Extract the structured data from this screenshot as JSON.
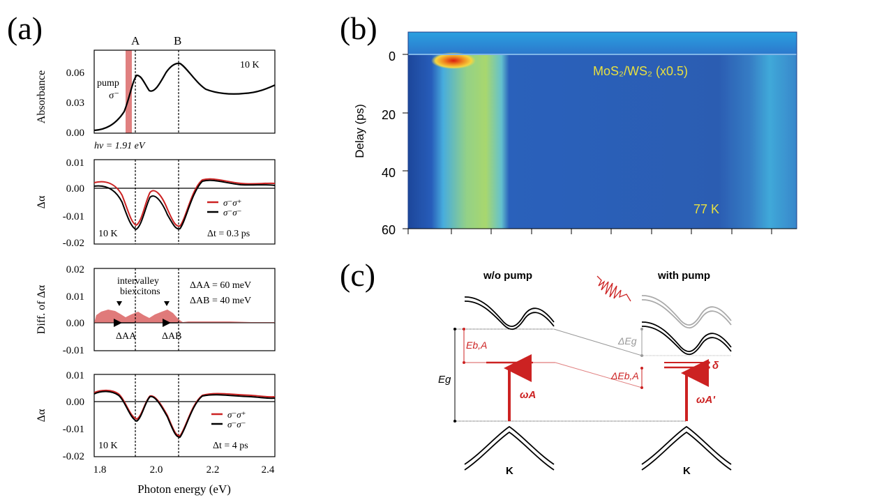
{
  "panel_labels": {
    "a": "(a)",
    "b": "(b)",
    "c": "(c)"
  },
  "panel_a": {
    "subplot1": {
      "ylabel": "Absorbance",
      "yticks": [
        "0.06",
        "0.03",
        "0.00"
      ],
      "peak_labels": [
        "A",
        "B"
      ],
      "temp": "10 K",
      "pump_line1": "pump",
      "pump_line2": "σ⁻",
      "note": "hν = 1.91 eV"
    },
    "subplot2": {
      "ylabel": "Δα",
      "yticks": [
        "0.01",
        "0.00",
        "-0.01",
        "-0.02"
      ],
      "legend": [
        "σ⁻σ⁺",
        "σ⁻σ⁻"
      ],
      "temp": "10 K",
      "dt": "Δt = 0.3 ps"
    },
    "subplot3": {
      "ylabel": "Diff. of Δα",
      "yticks": [
        "0.02",
        "0.01",
        "0.00",
        "-0.01"
      ],
      "annot_line1": "intervalley",
      "annot_line2": "biexcitons",
      "daa": "ΔAA = 60 meV",
      "dab": "ΔAB = 40 meV",
      "arrow_aa": "ΔAA",
      "arrow_ab": "ΔAB"
    },
    "subplot4": {
      "ylabel": "Δα",
      "yticks": [
        "0.01",
        "0.00",
        "-0.01",
        "-0.02"
      ],
      "legend": [
        "σ⁻σ⁺",
        "σ⁻σ⁻"
      ],
      "temp": "10 K",
      "dt": "Δt = 4 ps"
    },
    "xticks": [
      "1.8",
      "2.0",
      "2.2",
      "2.4"
    ],
    "xlabel": "Photon energy (eV)"
  },
  "panel_b": {
    "ylabel": "Delay (ps)",
    "yticks": [
      "0",
      "20",
      "40",
      "60"
    ],
    "sample_label": "MoS₂/WS₂ (x0.5)",
    "temp": "77 K"
  },
  "panel_c": {
    "left_title": "w/o pump",
    "right_title": "with pump",
    "eg": "Eg",
    "eba": "Eb,A",
    "delta_eg": "ΔEg",
    "delta_eba": "ΔEb,A",
    "omega_a": "ωA",
    "omega_a_prime": "ωA'",
    "delta": "δ",
    "k_left": "K",
    "k_right": "K"
  },
  "colors": {
    "red": "#cc2222",
    "pink": "#e08080",
    "gray": "#9a9a9a",
    "panel_b_bg": "#2f5fb0"
  }
}
